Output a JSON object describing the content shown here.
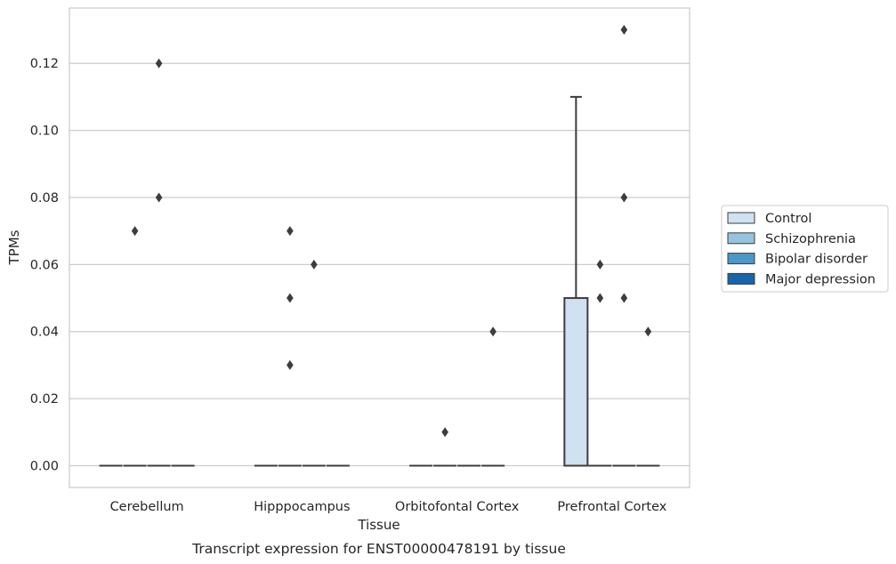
{
  "chart_data": {
    "type": "box",
    "title": "",
    "caption": "Transcript expression for ENST00000478191 by tissue",
    "xlabel": "Tissue",
    "ylabel": "TPMs",
    "ylim": [
      -0.0065,
      0.1365
    ],
    "yticks": [
      0.0,
      0.02,
      0.04,
      0.06,
      0.08,
      0.1,
      0.12
    ],
    "ytick_labels": [
      "0.00",
      "0.02",
      "0.04",
      "0.06",
      "0.08",
      "0.10",
      "0.12"
    ],
    "grid": true,
    "legend_position": "right",
    "categories": [
      "Cerebellum",
      "Hipppocampus",
      "Orbitofontal Cortex",
      "Prefrontal Cortex"
    ],
    "series": [
      {
        "name": "Control",
        "color": "#d0e1f2",
        "boxes": [
          {
            "q1": 0,
            "median": 0,
            "q3": 0,
            "whisker_low": 0,
            "whisker_high": 0,
            "outliers": []
          },
          {
            "q1": 0,
            "median": 0,
            "q3": 0,
            "whisker_low": 0,
            "whisker_high": 0,
            "outliers": []
          },
          {
            "q1": 0,
            "median": 0,
            "q3": 0,
            "whisker_low": 0,
            "whisker_high": 0,
            "outliers": []
          },
          {
            "q1": 0,
            "median": 0,
            "q3": 0.05,
            "whisker_low": 0,
            "whisker_high": 0.11,
            "outliers": []
          }
        ]
      },
      {
        "name": "Schizophrenia",
        "color": "#94c4df",
        "boxes": [
          {
            "q1": 0,
            "median": 0,
            "q3": 0,
            "whisker_low": 0,
            "whisker_high": 0,
            "outliers": [
              0.07
            ]
          },
          {
            "q1": 0,
            "median": 0,
            "q3": 0,
            "whisker_low": 0,
            "whisker_high": 0,
            "outliers": [
              0.07,
              0.05,
              0.03
            ]
          },
          {
            "q1": 0,
            "median": 0,
            "q3": 0,
            "whisker_low": 0,
            "whisker_high": 0,
            "outliers": [
              0.01
            ]
          },
          {
            "q1": 0,
            "median": 0,
            "q3": 0,
            "whisker_low": 0,
            "whisker_high": 0,
            "outliers": [
              0.06,
              0.05
            ]
          }
        ]
      },
      {
        "name": "Bipolar disorder",
        "color": "#4a98c9",
        "boxes": [
          {
            "q1": 0,
            "median": 0,
            "q3": 0,
            "whisker_low": 0,
            "whisker_high": 0,
            "outliers": [
              0.12,
              0.08
            ]
          },
          {
            "q1": 0,
            "median": 0,
            "q3": 0,
            "whisker_low": 0,
            "whisker_high": 0,
            "outliers": [
              0.06
            ]
          },
          {
            "q1": 0,
            "median": 0,
            "q3": 0,
            "whisker_low": 0,
            "whisker_high": 0,
            "outliers": []
          },
          {
            "q1": 0,
            "median": 0,
            "q3": 0,
            "whisker_low": 0,
            "whisker_high": 0,
            "outliers": [
              0.13,
              0.08,
              0.05
            ]
          }
        ]
      },
      {
        "name": "Major depression",
        "color": "#1764ab",
        "boxes": [
          {
            "q1": 0,
            "median": 0,
            "q3": 0,
            "whisker_low": 0,
            "whisker_high": 0,
            "outliers": []
          },
          {
            "q1": 0,
            "median": 0,
            "q3": 0,
            "whisker_low": 0,
            "whisker_high": 0,
            "outliers": []
          },
          {
            "q1": 0,
            "median": 0,
            "q3": 0,
            "whisker_low": 0,
            "whisker_high": 0,
            "outliers": [
              0.04
            ]
          },
          {
            "q1": 0,
            "median": 0,
            "q3": 0,
            "whisker_low": 0,
            "whisker_high": 0,
            "outliers": [
              0.04
            ]
          }
        ]
      }
    ]
  }
}
